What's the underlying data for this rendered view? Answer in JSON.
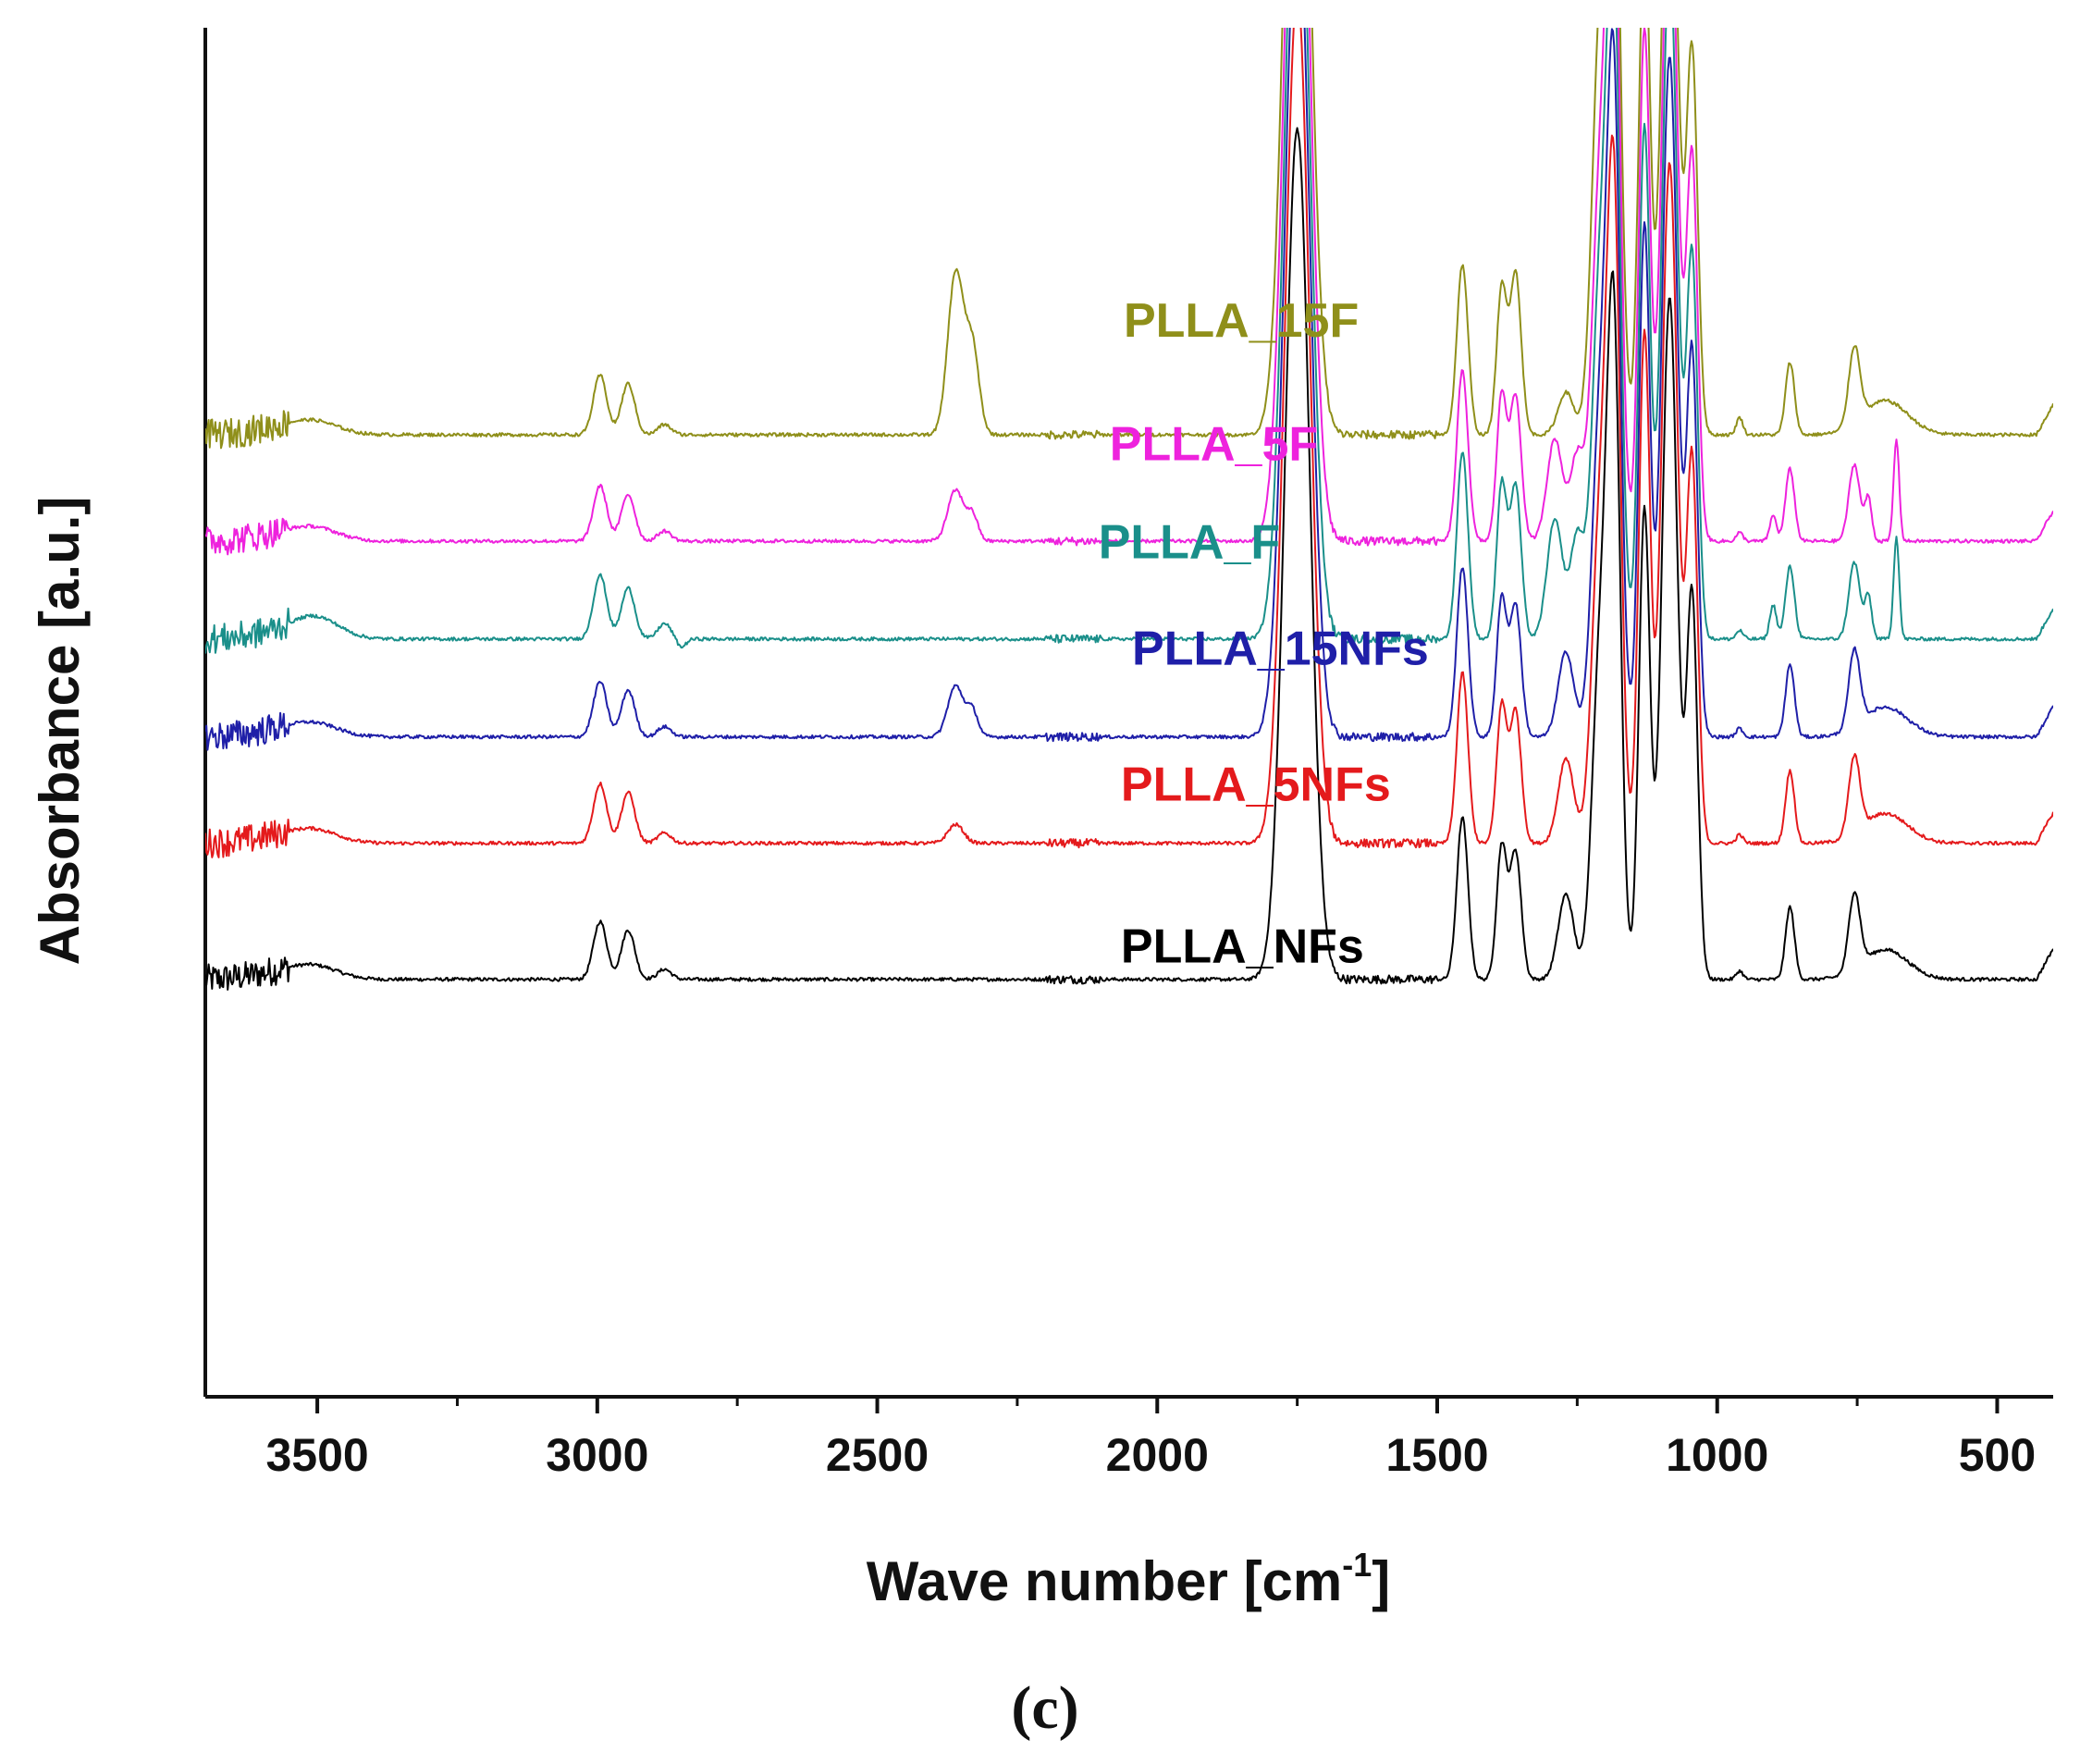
{
  "chart_data": {
    "type": "line",
    "title": "",
    "xlabel": "Wave number [cm",
    "xlabel_superscript": "-1",
    "xlabel_suffix": "]",
    "ylabel": "Absorbance [a.u.]",
    "panel_label": "(c)",
    "xlim": [
      3700,
      400
    ],
    "x_reversed": true,
    "x_ticks": [
      3500,
      3000,
      2500,
      2000,
      1500,
      1000,
      500
    ],
    "x_tick_labels": [
      "3500",
      "3000",
      "2500",
      "2000",
      "1500",
      "1000",
      "500"
    ],
    "y_ticks_shown": false,
    "grid": false,
    "legend_placement": "inline-labels",
    "series": [
      {
        "name": "PLLA_NFs",
        "color": "#000000",
        "baseline": 0.36,
        "label_x": 2065,
        "label_level": 0.38,
        "peaks": [
          [
            3500,
            0.01,
            40
          ],
          [
            2995,
            0.068,
            12
          ],
          [
            2945,
            0.058,
            12
          ],
          [
            2880,
            0.012,
            12
          ],
          [
            2360,
            0.0,
            12
          ],
          [
            1750,
            1.0,
            22
          ],
          [
            1455,
            0.19,
            10
          ],
          [
            1385,
            0.155,
            9
          ],
          [
            1360,
            0.15,
            10
          ],
          [
            1270,
            0.1,
            14
          ],
          [
            1210,
            0.36,
            14
          ],
          [
            1185,
            0.75,
            12
          ],
          [
            1130,
            0.55,
            10
          ],
          [
            1085,
            0.8,
            14
          ],
          [
            1045,
            0.45,
            10
          ],
          [
            960,
            0.01,
            6
          ],
          [
            870,
            0.085,
            8
          ],
          [
            755,
            0.09,
            10
          ],
          [
            700,
            0.035,
            40
          ]
        ]
      },
      {
        "name": "PLLA_5NFs",
        "color": "#e41a1c",
        "baseline": 0.52,
        "label_x": 2065,
        "label_level": 0.57,
        "peaks": [
          [
            3500,
            0.01,
            40
          ],
          [
            2995,
            0.07,
            12
          ],
          [
            2945,
            0.06,
            12
          ],
          [
            2880,
            0.012,
            12
          ],
          [
            2360,
            0.022,
            14
          ],
          [
            1750,
            1.0,
            22
          ],
          [
            1455,
            0.2,
            10
          ],
          [
            1385,
            0.16,
            9
          ],
          [
            1360,
            0.155,
            10
          ],
          [
            1270,
            0.1,
            14
          ],
          [
            1210,
            0.36,
            14
          ],
          [
            1185,
            0.75,
            12
          ],
          [
            1130,
            0.6,
            10
          ],
          [
            1085,
            0.8,
            14
          ],
          [
            1045,
            0.45,
            10
          ],
          [
            960,
            0.01,
            6
          ],
          [
            870,
            0.085,
            8
          ],
          [
            755,
            0.09,
            10
          ],
          [
            700,
            0.035,
            40
          ]
        ]
      },
      {
        "name": "PLLA_15NFs",
        "color": "#1f1fa8",
        "baseline": 0.645,
        "label_x": 2045,
        "label_level": 0.73,
        "peaks": [
          [
            3500,
            0.01,
            40
          ],
          [
            2995,
            0.065,
            12
          ],
          [
            2945,
            0.055,
            12
          ],
          [
            2880,
            0.012,
            12
          ],
          [
            2360,
            0.06,
            14
          ],
          [
            2330,
            0.03,
            10
          ],
          [
            1750,
            1.0,
            22
          ],
          [
            1455,
            0.2,
            10
          ],
          [
            1385,
            0.16,
            9
          ],
          [
            1360,
            0.155,
            10
          ],
          [
            1270,
            0.1,
            14
          ],
          [
            1210,
            0.36,
            14
          ],
          [
            1185,
            0.75,
            12
          ],
          [
            1130,
            0.6,
            10
          ],
          [
            1085,
            0.8,
            14
          ],
          [
            1045,
            0.45,
            10
          ],
          [
            960,
            0.01,
            6
          ],
          [
            870,
            0.085,
            8
          ],
          [
            755,
            0.09,
            10
          ],
          [
            700,
            0.035,
            40
          ]
        ]
      },
      {
        "name": "PLLA_F",
        "color": "#1a8f8a",
        "baseline": 0.76,
        "label_x": 2105,
        "label_level": 0.855,
        "peaks": [
          [
            3500,
            0.02,
            40
          ],
          [
            2995,
            0.075,
            12
          ],
          [
            2945,
            0.06,
            12
          ],
          [
            2880,
            0.018,
            12
          ],
          [
            2850,
            -0.01,
            8
          ],
          [
            1750,
            1.0,
            22
          ],
          [
            1455,
            0.22,
            10
          ],
          [
            1385,
            0.18,
            9
          ],
          [
            1360,
            0.18,
            10
          ],
          [
            1290,
            0.14,
            14
          ],
          [
            1250,
            0.12,
            12
          ],
          [
            1210,
            0.4,
            14
          ],
          [
            1185,
            0.75,
            12
          ],
          [
            1130,
            0.6,
            10
          ],
          [
            1085,
            0.8,
            14
          ],
          [
            1045,
            0.45,
            10
          ],
          [
            960,
            0.01,
            6
          ],
          [
            900,
            0.04,
            6
          ],
          [
            870,
            0.085,
            8
          ],
          [
            755,
            0.09,
            10
          ],
          [
            730,
            0.05,
            6
          ],
          [
            680,
            0.12,
            5
          ]
        ]
      },
      {
        "name": "PLLA_5F",
        "color": "#ee22dd",
        "baseline": 0.875,
        "label_x": 2085,
        "label_level": 0.97,
        "peaks": [
          [
            3500,
            0.01,
            40
          ],
          [
            2995,
            0.065,
            12
          ],
          [
            2945,
            0.055,
            12
          ],
          [
            2880,
            0.012,
            12
          ],
          [
            2360,
            0.06,
            14
          ],
          [
            2330,
            0.03,
            10
          ],
          [
            1750,
            1.0,
            22
          ],
          [
            1455,
            0.2,
            10
          ],
          [
            1385,
            0.17,
            9
          ],
          [
            1360,
            0.17,
            10
          ],
          [
            1290,
            0.12,
            14
          ],
          [
            1250,
            0.1,
            12
          ],
          [
            1210,
            0.4,
            14
          ],
          [
            1185,
            0.75,
            12
          ],
          [
            1130,
            0.6,
            10
          ],
          [
            1085,
            0.8,
            14
          ],
          [
            1045,
            0.45,
            10
          ],
          [
            960,
            0.01,
            6
          ],
          [
            900,
            0.03,
            6
          ],
          [
            870,
            0.085,
            8
          ],
          [
            755,
            0.09,
            10
          ],
          [
            730,
            0.05,
            6
          ],
          [
            680,
            0.12,
            5
          ]
        ]
      },
      {
        "name": "PLLA_15F",
        "color": "#8f8f1a",
        "baseline": 1.0,
        "label_x": 2060,
        "label_level": 1.115,
        "peaks": [
          [
            3500,
            0.01,
            40
          ],
          [
            2995,
            0.07,
            12
          ],
          [
            2945,
            0.06,
            12
          ],
          [
            2880,
            0.012,
            12
          ],
          [
            2360,
            0.19,
            14
          ],
          [
            2330,
            0.1,
            12
          ],
          [
            1750,
            1.0,
            22
          ],
          [
            1455,
            0.2,
            10
          ],
          [
            1385,
            0.17,
            9
          ],
          [
            1360,
            0.19,
            10
          ],
          [
            1270,
            0.05,
            14
          ],
          [
            1210,
            0.45,
            14
          ],
          [
            1185,
            0.75,
            12
          ],
          [
            1130,
            0.6,
            10
          ],
          [
            1085,
            0.8,
            14
          ],
          [
            1045,
            0.45,
            10
          ],
          [
            960,
            0.02,
            6
          ],
          [
            870,
            0.085,
            8
          ],
          [
            755,
            0.09,
            10
          ],
          [
            700,
            0.04,
            40
          ]
        ]
      }
    ]
  }
}
